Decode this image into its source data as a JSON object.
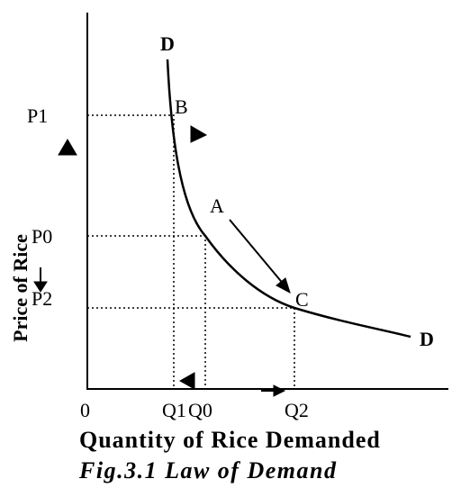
{
  "diagram": {
    "curve_labels": [
      "D",
      "D"
    ],
    "price_labels": [
      "P1",
      "P0",
      "P2"
    ],
    "point_labels": [
      "B",
      "A",
      "C"
    ],
    "quantity_labels": [
      "0",
      "Q1",
      "Q0",
      "Q2"
    ],
    "x_axis_label": "Quantity of Rice Demanded",
    "y_axis_label": "Price of Rice",
    "caption": "Fig.3.1 Law of Demand"
  }
}
